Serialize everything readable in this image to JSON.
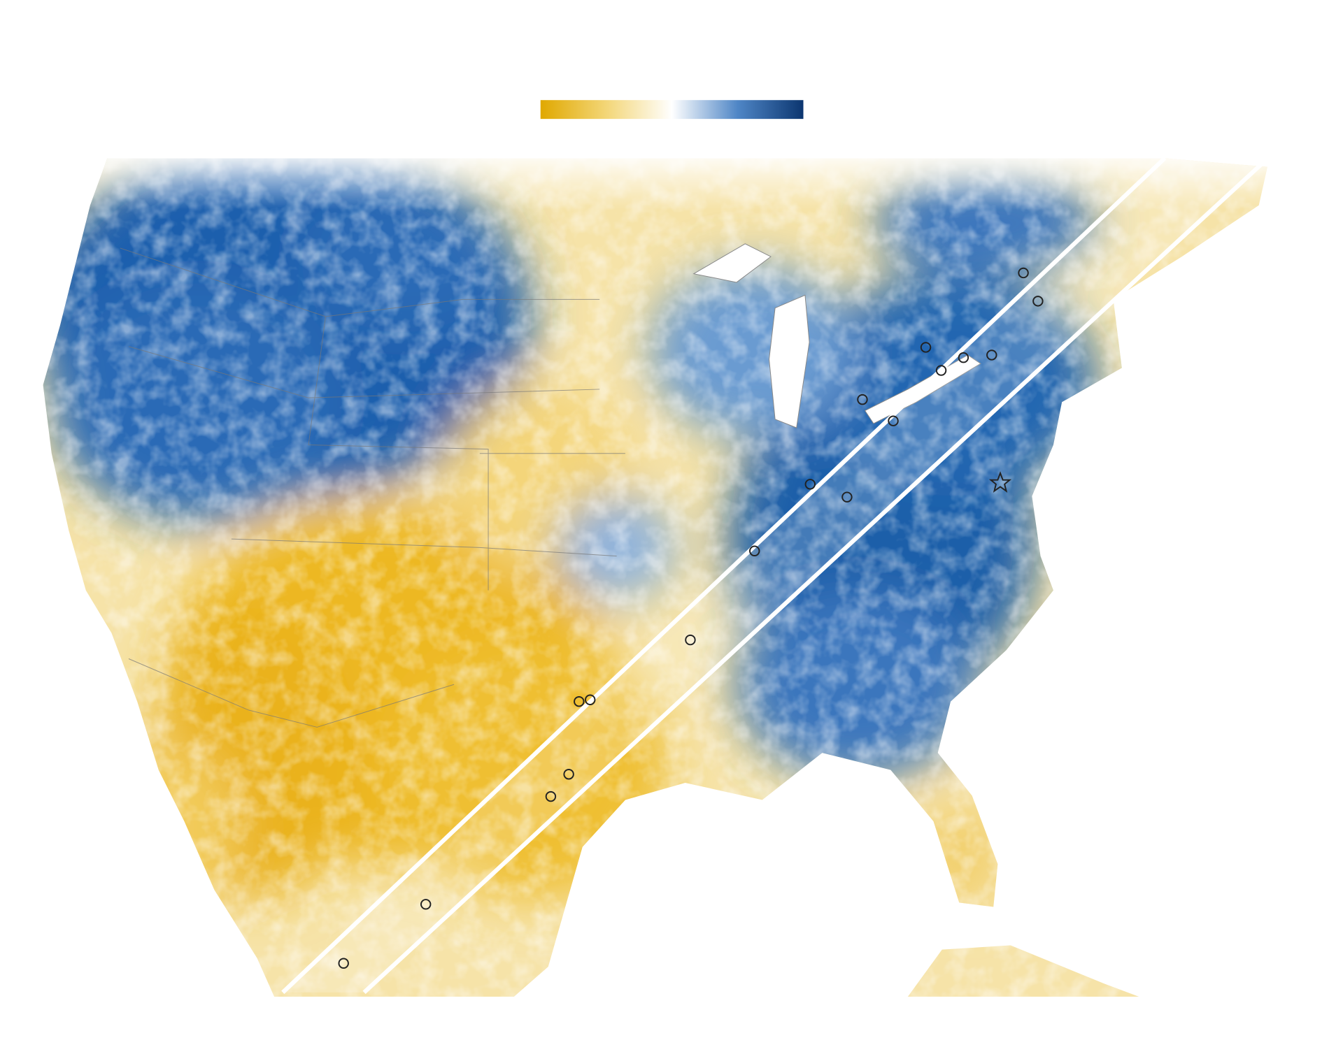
{
  "legend": {
    "colors": [
      "#e0a800",
      "#f3d677",
      "#ffffff",
      "#4f86c6",
      "#0c3670"
    ]
  }
}
